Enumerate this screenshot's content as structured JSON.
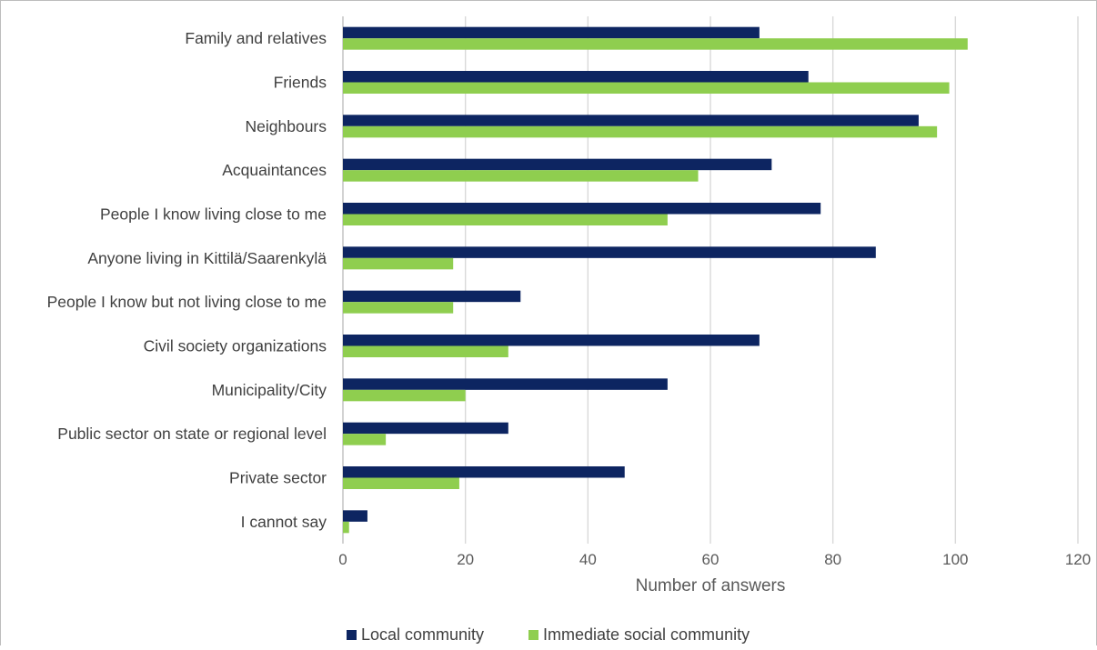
{
  "chart_data": {
    "type": "bar",
    "orientation": "horizontal",
    "categories": [
      "Family and relatives",
      "Friends",
      "Neighbours",
      "Acquaintances",
      "People I know living close to me",
      "Anyone living in Kittilä/Saarenkylä",
      "People I know but not living close to me",
      "Civil society organizations",
      "Municipality/City",
      "Public sector on state or regional level",
      "Private sector",
      "I cannot say"
    ],
    "series": [
      {
        "name": "Local community",
        "color": "#0d2561",
        "values": [
          68,
          76,
          94,
          70,
          78,
          87,
          29,
          68,
          53,
          27,
          46,
          4
        ]
      },
      {
        "name": "Immediate social community",
        "color": "#8fce4f",
        "values": [
          102,
          99,
          97,
          58,
          53,
          18,
          18,
          27,
          20,
          7,
          19,
          1
        ]
      }
    ],
    "xlabel": "Number of answers",
    "xlim": [
      0,
      120
    ],
    "xticks": [
      "0",
      "20",
      "40",
      "60",
      "80",
      "100",
      "120"
    ],
    "grid": "vertical",
    "legend": "bottom"
  }
}
